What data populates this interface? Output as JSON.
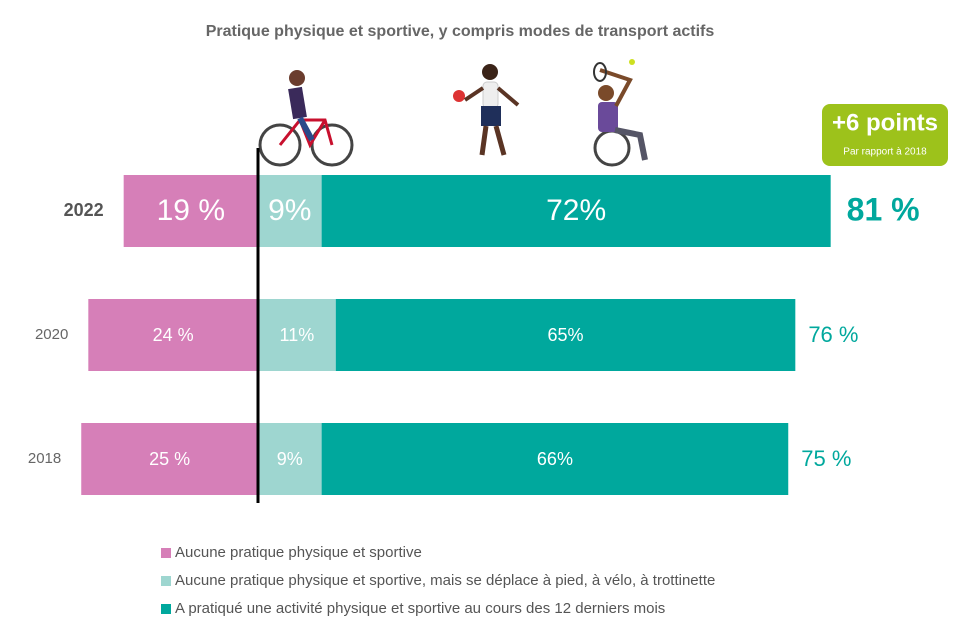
{
  "chart_data": {
    "type": "diverging_bar",
    "title": "Pratique physique et sportive, y compris modes de transport actifs",
    "categories": [
      "2022",
      "2020",
      "2018"
    ],
    "series": [
      {
        "name": "Aucune pratique physique et sportive",
        "color": "#d67fb8",
        "values": [
          19,
          24,
          25
        ],
        "value_labels": [
          "19 %",
          "24 %",
          "25 %"
        ]
      },
      {
        "name": "Aucune pratique physique et sportive, mais se déplace à pied, à vélo, à trottinette",
        "color": "#9ed6d0",
        "values": [
          9,
          11,
          9
        ],
        "value_labels": [
          "9%",
          "11%",
          "9%"
        ]
      },
      {
        "name": "A pratiqué une activité physique et sportive au cours des 12 derniers mois",
        "color": "#00a89d",
        "values": [
          72,
          65,
          66
        ],
        "value_labels": [
          "72%",
          "65%",
          "66%"
        ]
      }
    ],
    "totals": [
      81,
      76,
      75
    ],
    "total_labels": [
      "81 %",
      "76 %",
      "75 %"
    ],
    "annotation": {
      "title": "+6 points",
      "subtitle": "Par rapport à 2018"
    }
  }
}
